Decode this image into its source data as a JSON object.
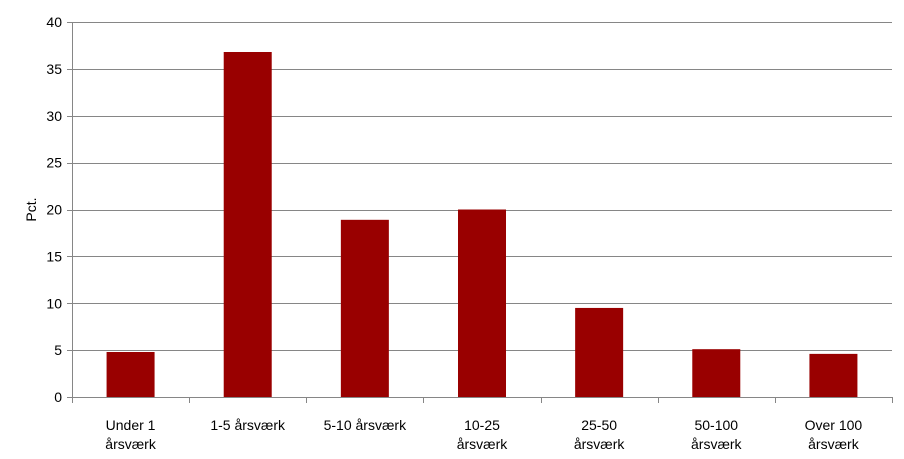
{
  "chart_data": {
    "type": "bar",
    "categories": [
      [
        "Under 1",
        "årsværk"
      ],
      [
        "1-5 årsværk"
      ],
      [
        "5-10 årsværk"
      ],
      [
        "10-25",
        "årsværk"
      ],
      [
        "25-50",
        "årsværk"
      ],
      [
        "50-100",
        "årsværk"
      ],
      [
        "Over 100",
        "årsværk"
      ]
    ],
    "values": [
      4.8,
      36.8,
      18.9,
      20.0,
      9.5,
      5.1,
      4.6
    ],
    "ylabel": "Pct.",
    "xlabel": "",
    "ylim": [
      0,
      40
    ],
    "yticks": [
      0,
      5,
      10,
      15,
      20,
      25,
      30,
      35,
      40
    ],
    "grid": true,
    "legend": "none",
    "bar_color": "#990000",
    "grid_color": "#868686"
  }
}
